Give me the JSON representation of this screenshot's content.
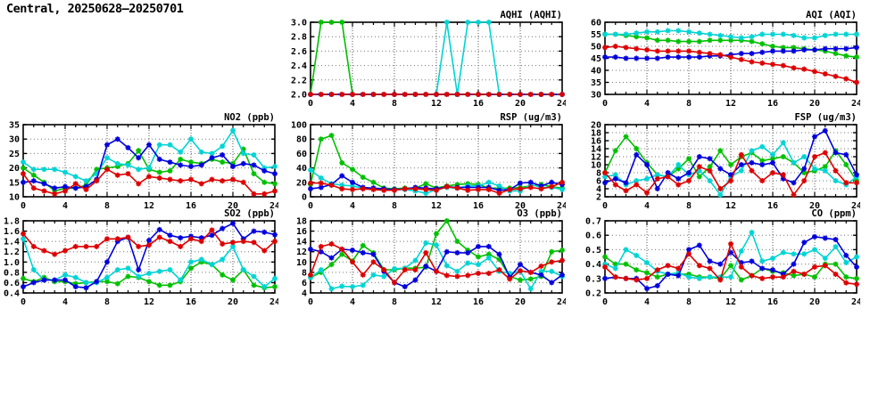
{
  "page_title": "Central, 20250628–20250701",
  "colors": {
    "red": "#dd0000",
    "green": "#00c000",
    "blue": "#0000dd",
    "cyan": "#00d4d4"
  },
  "x_values": [
    0,
    1,
    2,
    3,
    4,
    5,
    6,
    7,
    8,
    9,
    10,
    11,
    12,
    13,
    14,
    15,
    16,
    17,
    18,
    19,
    20,
    21,
    22,
    23,
    24
  ],
  "chart_data": [
    {
      "id": "aqhi",
      "title": "AQHI (AQHI)",
      "type": "line",
      "ylim": [
        2.0,
        3.0
      ],
      "ytick_step": 0.2,
      "y_decimals": 1,
      "xticks": [
        0,
        4,
        8,
        12,
        16,
        20,
        24
      ],
      "grid": true,
      "legend": "none",
      "series": [
        {
          "name": "green",
          "values": [
            2,
            3,
            3,
            3,
            2,
            2,
            2,
            2,
            2,
            2,
            2,
            2,
            2,
            2,
            2,
            2,
            2,
            2,
            2,
            2,
            2,
            2,
            2,
            2,
            2
          ]
        },
        {
          "name": "cyan",
          "values": [
            2,
            2,
            2,
            2,
            2,
            2,
            2,
            2,
            2,
            2,
            2,
            2,
            2,
            3,
            2,
            3,
            3,
            3,
            2,
            2,
            2,
            2,
            2,
            2,
            2
          ]
        },
        {
          "name": "blue",
          "values": [
            2,
            2,
            2,
            2,
            2,
            2,
            2,
            2,
            2,
            2,
            2,
            2,
            2,
            2,
            2,
            2,
            2,
            2,
            2,
            2,
            2,
            2,
            2,
            2,
            2
          ]
        },
        {
          "name": "red",
          "dash": true,
          "values": [
            2,
            2,
            2,
            2,
            2,
            2,
            2,
            2,
            2,
            2,
            2,
            2,
            2,
            2,
            2,
            2,
            2,
            2,
            2,
            2,
            2,
            2,
            2,
            2,
            2
          ]
        }
      ]
    },
    {
      "id": "aqi",
      "title": "AQI (AQI)",
      "type": "line",
      "ylim": [
        30,
        60
      ],
      "ytick_step": 5,
      "y_decimals": 0,
      "xticks": [
        0,
        4,
        8,
        12,
        16,
        20,
        24
      ],
      "grid": true,
      "legend": "none",
      "series": [
        {
          "name": "green",
          "values": [
            55,
            55,
            54.5,
            54,
            53.5,
            52.5,
            52.5,
            52,
            52,
            52,
            52.5,
            52.5,
            52.5,
            52.5,
            52,
            51,
            50,
            49.5,
            49.5,
            49,
            48.5,
            48,
            47,
            46,
            45.5
          ]
        },
        {
          "name": "cyan",
          "values": [
            55,
            55,
            55,
            55.5,
            56,
            56,
            56.5,
            56.5,
            56,
            55.5,
            55,
            54.5,
            54,
            53.5,
            54,
            55,
            55,
            55,
            54.5,
            53.5,
            53.5,
            54.5,
            55,
            55,
            55
          ]
        },
        {
          "name": "blue",
          "values": [
            45.5,
            45.5,
            45,
            45,
            45,
            45,
            45.5,
            45.5,
            45.5,
            45.5,
            46,
            46,
            46.5,
            47,
            47,
            47.5,
            48,
            48,
            48,
            48.5,
            48.5,
            49,
            49,
            49,
            49.5
          ]
        },
        {
          "name": "red",
          "values": [
            49.5,
            50,
            49.5,
            49,
            48.5,
            48,
            48,
            48,
            48,
            47.5,
            47,
            46.5,
            45.5,
            44.5,
            43.5,
            43,
            42.5,
            42,
            41,
            40.5,
            39.5,
            38.5,
            37.5,
            36.5,
            35
          ]
        }
      ]
    },
    {
      "id": "no2",
      "title": "NO2 (ppb)",
      "type": "line",
      "ylim": [
        10,
        35
      ],
      "ytick_step": 5,
      "y_decimals": 0,
      "xticks": [
        0,
        4,
        8,
        12,
        16,
        20,
        24
      ],
      "grid": true,
      "legend": "none",
      "series": [
        {
          "name": "green",
          "values": [
            20,
            17.5,
            15,
            12,
            13,
            13,
            14,
            19.5,
            20,
            20.5,
            21.5,
            26,
            19.5,
            18.5,
            19,
            23,
            22,
            21.5,
            23,
            22,
            21.5,
            26.5,
            18,
            15,
            14.5
          ]
        },
        {
          "name": "cyan",
          "values": [
            22,
            19.5,
            19.5,
            19.5,
            18.5,
            17,
            15.5,
            18,
            23.5,
            21.5,
            21,
            19.5,
            20,
            28,
            28,
            25.5,
            30,
            25.5,
            25,
            27.5,
            33,
            25,
            24.5,
            20,
            20.5
          ]
        },
        {
          "name": "blue",
          "values": [
            15,
            15.5,
            14.5,
            13,
            13.5,
            13,
            13.5,
            16,
            28,
            30,
            27,
            23.5,
            28,
            23,
            22,
            21,
            20.5,
            21,
            23.5,
            24.5,
            20.5,
            21.5,
            21,
            19,
            18
          ]
        },
        {
          "name": "red",
          "values": [
            18,
            13,
            12,
            11,
            12,
            14.5,
            12.5,
            15.5,
            19.5,
            17.5,
            18,
            14.5,
            17,
            16.5,
            16,
            15.5,
            16,
            14.5,
            16,
            15.5,
            16,
            15,
            11,
            11,
            12
          ]
        }
      ]
    },
    {
      "id": "rsp",
      "title": "RSP (ug/m3)",
      "type": "line",
      "ylim": [
        0,
        100
      ],
      "ytick_step": 20,
      "y_decimals": 0,
      "xticks": [
        0,
        4,
        8,
        12,
        16,
        20,
        24
      ],
      "grid": true,
      "legend": "none",
      "series": [
        {
          "name": "green",
          "values": [
            17,
            80,
            85,
            47,
            38,
            27,
            20,
            12,
            11,
            12,
            12,
            18,
            12,
            15,
            17,
            18,
            17,
            12,
            12,
            12,
            13,
            15,
            17,
            14,
            12
          ]
        },
        {
          "name": "cyan",
          "values": [
            37,
            26,
            18,
            16,
            15,
            12,
            12,
            10,
            10,
            10,
            8,
            5,
            10,
            13,
            12,
            15,
            15,
            20,
            15,
            8,
            8,
            17,
            13,
            13,
            10
          ]
        },
        {
          "name": "blue",
          "values": [
            11,
            13,
            17,
            29,
            20,
            13,
            12,
            11,
            10,
            11,
            13,
            12,
            11,
            14,
            13,
            13,
            13,
            13,
            9,
            10,
            19,
            20,
            15,
            20,
            17
          ]
        },
        {
          "name": "red",
          "values": [
            19,
            19,
            16,
            11,
            10,
            11,
            10,
            9,
            9,
            11,
            11,
            10,
            9,
            14,
            12,
            9,
            10,
            10,
            5,
            10,
            11,
            13,
            11,
            14,
            20
          ]
        }
      ]
    },
    {
      "id": "fsp",
      "title": "FSP (ug/m3)",
      "type": "line",
      "ylim": [
        2,
        20
      ],
      "ytick_step": 2,
      "y_decimals": 0,
      "xticks": [
        0,
        4,
        8,
        12,
        16,
        20,
        24
      ],
      "grid": true,
      "legend": "none",
      "series": [
        {
          "name": "green",
          "values": [
            8,
            13.5,
            17,
            14,
            10.5,
            7.5,
            7,
            9,
            11.5,
            7,
            9.5,
            13.5,
            10,
            12,
            13,
            11,
            11.5,
            12,
            10.5,
            8,
            8.5,
            9.5,
            13.5,
            10,
            6
          ]
        },
        {
          "name": "cyan",
          "values": [
            7,
            7.5,
            5,
            6,
            6.5,
            7.5,
            7,
            10,
            7.5,
            8.5,
            6,
            2.5,
            7,
            8.5,
            13.5,
            14.5,
            12.5,
            15.5,
            10.5,
            12,
            9,
            8.5,
            6,
            5,
            7
          ]
        },
        {
          "name": "blue",
          "values": [
            5.5,
            6.5,
            5.5,
            12.5,
            10,
            4,
            8,
            6.5,
            8,
            12,
            11.5,
            9,
            7.5,
            10,
            10.5,
            10,
            10.5,
            6.5,
            5.5,
            9,
            17,
            18.5,
            13,
            12.5,
            7.5
          ]
        },
        {
          "name": "red",
          "values": [
            8,
            5,
            3.5,
            5,
            3,
            6.5,
            7,
            5,
            6,
            9.5,
            8.5,
            4,
            6,
            12.5,
            8.5,
            6,
            8,
            7.5,
            2.5,
            6,
            12,
            13,
            8.5,
            5.5,
            5.5
          ]
        }
      ]
    },
    {
      "id": "so2",
      "title": "SO2 (ppb)",
      "type": "line",
      "ylim": [
        0.4,
        1.8
      ],
      "ytick_step": 0.2,
      "y_decimals": 1,
      "xticks": [
        0,
        4,
        8,
        12,
        16,
        20,
        24
      ],
      "grid": true,
      "legend": "none",
      "series": [
        {
          "name": "green",
          "values": [
            0.68,
            0.62,
            0.7,
            0.62,
            0.62,
            0.58,
            0.6,
            0.62,
            0.62,
            0.58,
            0.72,
            0.7,
            0.62,
            0.55,
            0.55,
            0.62,
            0.88,
            1.0,
            0.95,
            0.75,
            0.65,
            0.85,
            0.55,
            0.5,
            0.52
          ]
        },
        {
          "name": "cyan",
          "values": [
            1.45,
            0.85,
            0.65,
            0.65,
            0.75,
            0.7,
            0.6,
            0.6,
            0.7,
            0.85,
            0.88,
            0.72,
            0.78,
            0.82,
            0.85,
            0.65,
            1.0,
            1.05,
            0.95,
            1.05,
            1.3,
            0.85,
            0.72,
            0.52,
            0.68
          ]
        },
        {
          "name": "blue",
          "values": [
            0.52,
            0.6,
            0.65,
            0.65,
            0.65,
            0.52,
            0.5,
            0.62,
            1.0,
            1.4,
            1.48,
            0.85,
            1.42,
            1.63,
            1.52,
            1.47,
            1.5,
            1.47,
            1.52,
            1.65,
            1.75,
            1.45,
            1.6,
            1.58,
            1.53
          ]
        },
        {
          "name": "red",
          "values": [
            1.55,
            1.3,
            1.22,
            1.15,
            1.22,
            1.3,
            1.3,
            1.3,
            1.45,
            1.45,
            1.48,
            1.3,
            1.33,
            1.48,
            1.4,
            1.3,
            1.45,
            1.4,
            1.62,
            1.35,
            1.38,
            1.4,
            1.38,
            1.22,
            1.4
          ]
        }
      ]
    },
    {
      "id": "o3",
      "title": "O3 (ppb)",
      "type": "line",
      "ylim": [
        4,
        18
      ],
      "ytick_step": 2,
      "y_decimals": 0,
      "xticks": [
        0,
        4,
        8,
        12,
        16,
        20,
        24
      ],
      "grid": true,
      "legend": "none",
      "series": [
        {
          "name": "green",
          "values": [
            7,
            8,
            9.5,
            11.5,
            10.2,
            13.2,
            11.8,
            8.5,
            8.5,
            8.8,
            8.8,
            9,
            15.5,
            18,
            14,
            12.3,
            11,
            11.5,
            10.5,
            7.2,
            6.5,
            6.7,
            7.2,
            12,
            12.3
          ]
        },
        {
          "name": "cyan",
          "values": [
            7,
            8.5,
            4.8,
            5.3,
            5.2,
            5.5,
            7.5,
            7.2,
            8.7,
            8.8,
            10.3,
            13.7,
            13.3,
            9.3,
            8.2,
            9.8,
            9.5,
            10.8,
            8.2,
            7.8,
            8.2,
            4.8,
            8.2,
            8.2,
            7.2
          ]
        },
        {
          "name": "blue",
          "values": [
            12.5,
            12,
            10.8,
            12.5,
            12.3,
            11.8,
            11.5,
            8.2,
            6,
            5.2,
            6.5,
            9.2,
            8.2,
            12,
            11.8,
            11.8,
            13,
            13,
            11.5,
            7,
            9.5,
            8,
            7.5,
            6,
            7.5
          ]
        },
        {
          "name": "red",
          "values": [
            7.5,
            13,
            13.5,
            12.5,
            10,
            7.5,
            10,
            8.5,
            6,
            8.5,
            8.5,
            11.8,
            8.2,
            7.4,
            7.2,
            7.4,
            7.8,
            7.8,
            8.5,
            6.7,
            8.3,
            8,
            9.2,
            10,
            10.3
          ]
        }
      ]
    },
    {
      "id": "co",
      "title": "CO (ppm)",
      "type": "line",
      "ylim": [
        0.2,
        0.7
      ],
      "ytick_step": 0.1,
      "y_decimals": 1,
      "xticks": [
        0,
        4,
        8,
        12,
        16,
        20,
        24
      ],
      "grid": true,
      "legend": "none",
      "series": [
        {
          "name": "green",
          "values": [
            0.45,
            0.4,
            0.4,
            0.36,
            0.34,
            0.31,
            0.33,
            0.33,
            0.33,
            0.31,
            0.31,
            0.3,
            0.39,
            0.29,
            0.32,
            0.37,
            0.35,
            0.34,
            0.32,
            0.33,
            0.31,
            0.4,
            0.4,
            0.31,
            0.3
          ]
        },
        {
          "name": "cyan",
          "values": [
            0.4,
            0.37,
            0.5,
            0.46,
            0.41,
            0.35,
            0.33,
            0.34,
            0.31,
            0.3,
            0.31,
            0.31,
            0.31,
            0.49,
            0.62,
            0.42,
            0.44,
            0.48,
            0.47,
            0.47,
            0.5,
            0.44,
            0.52,
            0.41,
            0.45
          ]
        },
        {
          "name": "blue",
          "values": [
            0.3,
            0.31,
            0.3,
            0.3,
            0.23,
            0.25,
            0.33,
            0.32,
            0.5,
            0.53,
            0.42,
            0.4,
            0.48,
            0.41,
            0.42,
            0.37,
            0.36,
            0.33,
            0.4,
            0.55,
            0.59,
            0.58,
            0.57,
            0.46,
            0.38
          ]
        },
        {
          "name": "red",
          "values": [
            0.38,
            0.31,
            0.3,
            0.29,
            0.3,
            0.36,
            0.39,
            0.37,
            0.47,
            0.39,
            0.37,
            0.29,
            0.54,
            0.38,
            0.32,
            0.3,
            0.31,
            0.31,
            0.35,
            0.33,
            0.38,
            0.39,
            0.33,
            0.27,
            0.26
          ]
        }
      ]
    }
  ]
}
